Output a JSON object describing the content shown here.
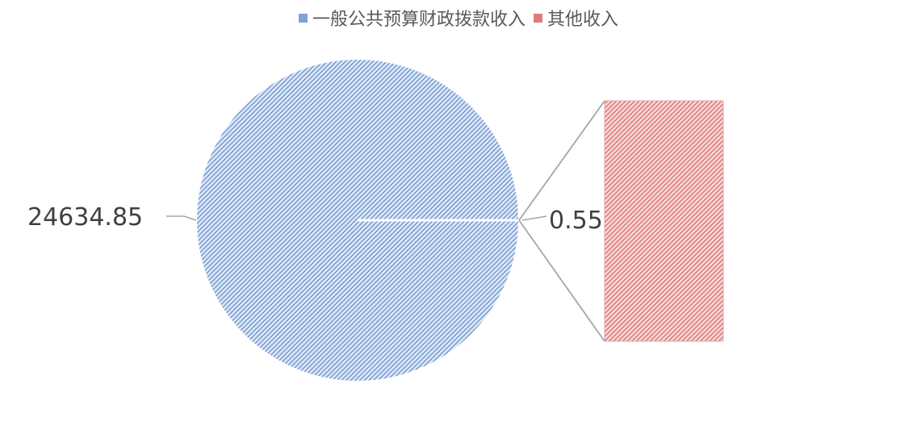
{
  "chart_data": {
    "type": "pie",
    "subtype": "pie-of-pie-bar",
    "legend_position": "top",
    "categories": [
      "一般公共预算财政拨款收入",
      "其他收入"
    ],
    "values": [
      24634.85,
      0.55
    ],
    "data_labels": [
      "24634.85",
      "0.55"
    ],
    "colors": {
      "一般公共预算财政拨款收入": "#7fa3d8",
      "其他收入": "#e07b7b"
    },
    "pattern": "diagonal-hatch"
  }
}
